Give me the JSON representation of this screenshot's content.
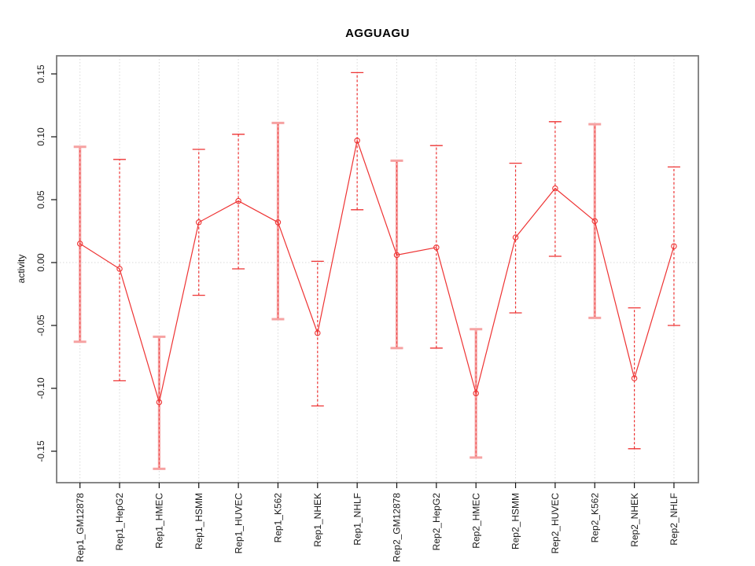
{
  "chart_data": {
    "type": "line",
    "title": "AGGUAGU",
    "xlabel": "",
    "ylabel": "activity",
    "ylim": [
      -0.175,
      0.164
    ],
    "yticks": [
      -0.15,
      -0.1,
      -0.05,
      0.0,
      0.05,
      0.1,
      0.15
    ],
    "ytick_labels": [
      "-0.15",
      "-0.10",
      "-0.05",
      "0.00",
      "0.05",
      "0.10",
      "0.15"
    ],
    "grid": "dotted vertical gridline at each category, dotted horizontal gridline at y=0",
    "legend_position": "none",
    "point_marker": "open-circle",
    "error_bars": true,
    "categories": [
      "Rep1_GM12878",
      "Rep1_HepG2",
      "Rep1_HMEC",
      "Rep1_HSMM",
      "Rep1_HUVEC",
      "Rep1_K562",
      "Rep1_NHEK",
      "Rep1_NHLF",
      "Rep2_GM12878",
      "Rep2_HepG2",
      "Rep2_HMEC",
      "Rep2_HSMM",
      "Rep2_HUVEC",
      "Rep2_K562",
      "Rep2_NHEK",
      "Rep2_NHLF"
    ],
    "series": [
      {
        "name": "activity",
        "means": [
          0.015,
          -0.005,
          -0.111,
          0.032,
          0.049,
          0.032,
          -0.056,
          0.097,
          0.006,
          0.012,
          -0.104,
          0.02,
          0.059,
          0.033,
          -0.092,
          0.013
        ],
        "err_high": [
          0.092,
          0.082,
          -0.059,
          0.09,
          0.102,
          0.111,
          0.001,
          0.151,
          0.081,
          0.093,
          -0.053,
          0.079,
          0.112,
          0.11,
          -0.036,
          0.076
        ],
        "err_low": [
          -0.063,
          -0.094,
          -0.164,
          -0.026,
          -0.005,
          -0.045,
          -0.114,
          0.042,
          -0.068,
          -0.068,
          -0.155,
          -0.04,
          0.005,
          -0.044,
          -0.148,
          -0.05
        ]
      }
    ],
    "styles": {
      "line_color": "#EE3333",
      "thick_bar_color": "#F6A2A2",
      "thick_bar_categories": [
        "Rep1_GM12878",
        "Rep1_HMEC",
        "Rep1_K562",
        "Rep2_GM12878",
        "Rep2_HMEC",
        "Rep2_K562"
      ],
      "grid_color": "#D9D9D9",
      "frame_color": "#7A7A7A",
      "tick_color": "#111111"
    }
  }
}
